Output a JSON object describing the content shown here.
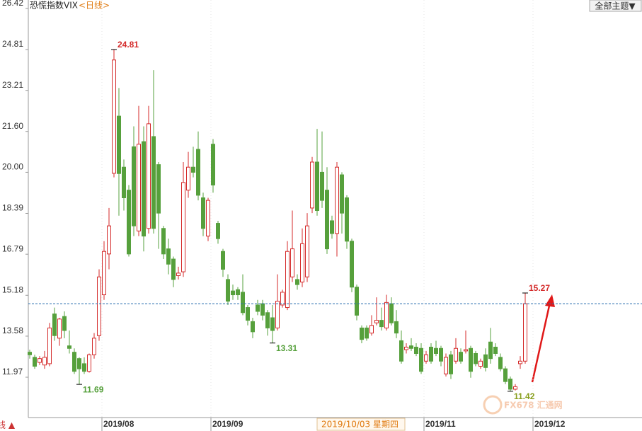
{
  "chart_data": {
    "type": "candlestick",
    "title": "恐慌指数VIX",
    "subtitle": "<日线>",
    "open": [
      12.95,
      12.75,
      12.55,
      12.45,
      12.5,
      14.45,
      13.5,
      14.35,
      13.2,
      12.95,
      12.7,
      12.5,
      12.2,
      12.85,
      13.6,
      15.2,
      16.8,
      19.96,
      22.2,
      20.2,
      19.3,
      21.0,
      17.7,
      21.2,
      17.8,
      21.4,
      20.3,
      17.8,
      17.0,
      16.6,
      15.95,
      16.1,
      19.3,
      20.2,
      20.9,
      19.0,
      17.5,
      21.1,
      18.0,
      16.9,
      15.8,
      15.35,
      15.4,
      15.3,
      14.7,
      14.15,
      14.8,
      14.85,
      14.5,
      14.3,
      13.9,
      14.8,
      14.7,
      15.9,
      15.8,
      15.7,
      15.9,
      18.6,
      20.4,
      20.0,
      19.3,
      18.1,
      17.6,
      19.9,
      19.0,
      17.3,
      15.5,
      13.9,
      13.9,
      13.7,
      14.1,
      14.2,
      13.9,
      14.85,
      14.15,
      13.4,
      13.05,
      13.2,
      13.15,
      13.1,
      12.6,
      13.15,
      13.1,
      13.1,
      12.1,
      12.85,
      12.6,
      12.95,
      13.0,
      13.1,
      12.9,
      12.4,
      12.85,
      13.35,
      13.15,
      12.75,
      12.3,
      11.9,
      11.5,
      12.5,
      12.6
    ],
    "high": [
      13.05,
      12.85,
      12.8,
      13.0,
      14.1,
      14.7,
      14.3,
      14.55,
      13.8,
      13.1,
      12.75,
      12.75,
      12.9,
      13.7,
      16.2,
      17.3,
      18.6,
      24.81,
      23.3,
      20.5,
      19.5,
      21.8,
      22.6,
      21.8,
      22.6,
      24.0,
      20.4,
      17.9,
      17.4,
      16.7,
      16.3,
      20.4,
      20.8,
      21.0,
      21.6,
      19.2,
      19.0,
      21.3,
      18.1,
      17.0,
      16.0,
      15.6,
      15.5,
      16.0,
      14.8,
      14.3,
      15.0,
      15.0,
      14.6,
      14.8,
      16.0,
      15.4,
      17.3,
      18.5,
      16.0,
      17.8,
      18.4,
      20.6,
      21.7,
      21.6,
      20.2,
      18.3,
      20.4,
      20.0,
      19.1,
      17.4,
      15.6,
      14.0,
      14.0,
      14.4,
      15.1,
      14.7,
      15.2,
      15.1,
      14.6,
      13.8,
      13.3,
      13.5,
      13.3,
      13.3,
      13.0,
      13.3,
      13.4,
      13.2,
      12.9,
      13.0,
      13.5,
      13.1,
      13.8,
      13.2,
      13.0,
      12.7,
      13.1,
      13.9,
      13.3,
      12.9,
      12.4,
      12.0,
      11.7,
      12.8,
      15.27
    ],
    "low": [
      12.7,
      12.3,
      12.45,
      12.3,
      12.4,
      13.4,
      13.2,
      13.5,
      12.9,
      12.1,
      11.69,
      12.1,
      12.15,
      12.7,
      13.4,
      15.0,
      16.2,
      19.8,
      18.3,
      18.5,
      16.7,
      17.5,
      17.5,
      16.9,
      17.6,
      17.6,
      17.0,
      16.6,
      16.0,
      15.5,
      15.8,
      15.9,
      19.0,
      19.8,
      18.9,
      17.5,
      17.3,
      19.2,
      17.2,
      15.9,
      14.8,
      15.0,
      15.0,
      14.4,
      14.0,
      13.5,
      14.4,
      14.2,
      13.6,
      13.31,
      13.8,
      14.7,
      14.6,
      15.7,
      15.4,
      15.5,
      15.7,
      18.4,
      18.3,
      18.6,
      16.8,
      17.4,
      16.7,
      17.6,
      17.0,
      15.3,
      14.2,
      13.3,
      13.4,
      13.6,
      14.0,
      13.8,
      13.8,
      14.0,
      13.5,
      12.5,
      12.9,
      13.0,
      12.8,
      12.1,
      12.5,
      12.5,
      12.8,
      12.4,
      12.0,
      11.9,
      12.5,
      12.5,
      12.9,
      11.95,
      12.4,
      12.3,
      12.2,
      12.5,
      12.8,
      12.2,
      11.7,
      11.42,
      11.45,
      12.3,
      12.5
    ],
    "close": [
      12.85,
      12.4,
      12.7,
      12.75,
      13.9,
      13.6,
      14.25,
      13.8,
      13.1,
      12.2,
      12.3,
      12.2,
      12.85,
      13.5,
      15.9,
      16.9,
      17.9,
      24.4,
      19.95,
      19.0,
      16.8,
      17.9,
      21.1,
      17.5,
      21.9,
      17.8,
      18.4,
      16.8,
      16.4,
      15.8,
      16.05,
      19.6,
      20.2,
      20.0,
      19.1,
      17.8,
      18.9,
      19.5,
      17.4,
      16.2,
      14.95,
      15.2,
      15.2,
      14.5,
      14.2,
      13.75,
      14.55,
      14.4,
      13.9,
      13.8,
      14.95,
      15.3,
      16.9,
      17.0,
      15.6,
      17.2,
      17.9,
      20.4,
      18.5,
      18.9,
      17.0,
      17.6,
      20.2,
      18.4,
      17.3,
      15.5,
      14.4,
      13.45,
      13.5,
      14.0,
      14.2,
      13.95,
      14.9,
      14.1,
      13.7,
      12.6,
      13.15,
      13.1,
      12.9,
      12.2,
      12.85,
      12.6,
      12.9,
      12.6,
      12.75,
      12.1,
      13.1,
      12.6,
      13.05,
      12.2,
      12.5,
      12.6,
      12.35,
      12.7,
      12.9,
      12.3,
      11.8,
      11.5,
      11.6,
      12.6,
      14.85
    ],
    "up_color": "#d42a2a",
    "down_color": "#56a03c",
    "price_line_color": "#2a6fb0",
    "ylim": [
      10.39,
      26.75
    ],
    "yticks": [
      26.42,
      24.81,
      23.21,
      {
        "value": 21.6,
        "label": "21.60"
      },
      {
        "value": 20,
        "label": "20.00"
      },
      18.39,
      16.79,
      15.18,
      13.58,
      11.97
    ],
    "xlim": [
      -0.3,
      123.6
    ],
    "xticks": [
      {
        "value": 15,
        "label": "2019/08"
      },
      {
        "value": 37,
        "label": "2019/09"
      },
      {
        "value": 80,
        "label": "2019/11"
      },
      {
        "value": 102,
        "label": "2019/12"
      }
    ],
    "crosshair_label": "2019/10/03 星期四"
  },
  "ui": {
    "theme_button": "全部主题▼",
    "corner_label": "线 ▲",
    "watermark": "FX678 汇通网"
  }
}
